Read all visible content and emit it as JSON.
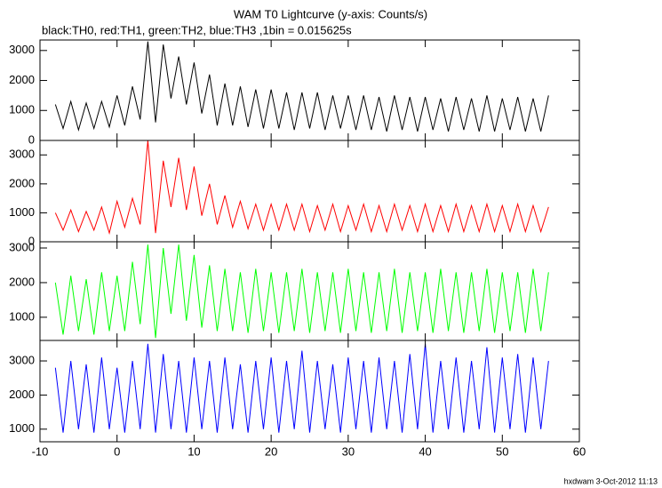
{
  "chart_data": [
    {
      "type": "line",
      "title": "WAM T0 Lightcurve (y-axis: Counts/s)",
      "subtitle": "black:TH0, red:TH1, green:TH2, blue:TH3 ,1bin = 0.015625s",
      "x": [
        -8,
        -7,
        -6,
        -5,
        -4,
        -3,
        -2,
        -1,
        0,
        1,
        2,
        3,
        4,
        5,
        6,
        7,
        8,
        9,
        10,
        11,
        12,
        13,
        14,
        15,
        16,
        17,
        18,
        19,
        20,
        21,
        22,
        23,
        24,
        25,
        26,
        27,
        28,
        29,
        30,
        31,
        32,
        33,
        34,
        35,
        36,
        37,
        38,
        39,
        40,
        41,
        42,
        43,
        44,
        45,
        46,
        47,
        48,
        49,
        50,
        51,
        52,
        53,
        54,
        55,
        56
      ],
      "series": [
        {
          "name": "TH0",
          "color": "#000000",
          "values": [
            1200,
            400,
            1300,
            350,
            1250,
            400,
            1300,
            450,
            1500,
            500,
            1800,
            700,
            3300,
            600,
            3200,
            1400,
            2800,
            1200,
            2600,
            900,
            2200,
            500,
            1900,
            500,
            1800,
            450,
            1700,
            400,
            1700,
            400,
            1600,
            350,
            1600,
            400,
            1600,
            350,
            1500,
            400,
            1500,
            350,
            1500,
            350,
            1450,
            300,
            1500,
            350,
            1450,
            300,
            1450,
            350,
            1400,
            300,
            1450,
            350,
            1400,
            300,
            1500,
            300,
            1400,
            350,
            1450,
            300,
            1400,
            300,
            1500
          ]
        }
      ],
      "xlim": [
        -10,
        60
      ],
      "xticks": [
        -10,
        0,
        10,
        20,
        30,
        40,
        50,
        60
      ],
      "ylim": [
        0,
        3350
      ],
      "yticks": [
        0,
        1000,
        2000,
        3000
      ]
    },
    {
      "type": "line",
      "x": [
        -8,
        -7,
        -6,
        -5,
        -4,
        -3,
        -2,
        -1,
        0,
        1,
        2,
        3,
        4,
        5,
        6,
        7,
        8,
        9,
        10,
        11,
        12,
        13,
        14,
        15,
        16,
        17,
        18,
        19,
        20,
        21,
        22,
        23,
        24,
        25,
        26,
        27,
        28,
        29,
        30,
        31,
        32,
        33,
        34,
        35,
        36,
        37,
        38,
        39,
        40,
        41,
        42,
        43,
        44,
        45,
        46,
        47,
        48,
        49,
        50,
        51,
        52,
        53,
        54,
        55,
        56
      ],
      "series": [
        {
          "name": "TH1",
          "color": "#ff0000",
          "values": [
            1000,
            400,
            1100,
            350,
            1050,
            400,
            1200,
            300,
            1400,
            500,
            1500,
            600,
            3500,
            300,
            2800,
            1200,
            2900,
            1100,
            2600,
            900,
            2000,
            600,
            1600,
            500,
            1400,
            450,
            1300,
            400,
            1300,
            400,
            1300,
            400,
            1300,
            350,
            1250,
            400,
            1300,
            350,
            1250,
            400,
            1300,
            350,
            1250,
            350,
            1300,
            400,
            1250,
            350,
            1300,
            350,
            1250,
            350,
            1300,
            350,
            1250,
            350,
            1300,
            350,
            1250,
            350,
            1300,
            350,
            1250,
            350,
            1200
          ]
        }
      ],
      "xlim": [
        -10,
        60
      ],
      "xticks": [
        -10,
        0,
        10,
        20,
        30,
        40,
        50,
        60
      ],
      "ylim": [
        0,
        3500
      ],
      "yticks": [
        0,
        1000,
        2000,
        3000
      ]
    },
    {
      "type": "line",
      "x": [
        -8,
        -7,
        -6,
        -5,
        -4,
        -3,
        -2,
        -1,
        0,
        1,
        2,
        3,
        4,
        5,
        6,
        7,
        8,
        9,
        10,
        11,
        12,
        13,
        14,
        15,
        16,
        17,
        18,
        19,
        20,
        21,
        22,
        23,
        24,
        25,
        26,
        27,
        28,
        29,
        30,
        31,
        32,
        33,
        34,
        35,
        36,
        37,
        38,
        39,
        40,
        41,
        42,
        43,
        44,
        45,
        46,
        47,
        48,
        49,
        50,
        51,
        52,
        53,
        54,
        55,
        56
      ],
      "series": [
        {
          "name": "TH2",
          "color": "#00ff00",
          "values": [
            2000,
            500,
            2200,
            600,
            2100,
            500,
            2300,
            600,
            2200,
            600,
            2600,
            800,
            3100,
            400,
            3000,
            1100,
            3100,
            900,
            2800,
            700,
            2500,
            600,
            2400,
            600,
            2300,
            550,
            2400,
            600,
            2300,
            550,
            2300,
            600,
            2400,
            550,
            2300,
            600,
            2300,
            550,
            2400,
            600,
            2300,
            550,
            2300,
            600,
            2400,
            550,
            2300,
            600,
            2300,
            550,
            2400,
            600,
            2300,
            550,
            2300,
            600,
            2400,
            550,
            2300,
            600,
            2300,
            550,
            2400,
            600,
            2300
          ]
        }
      ],
      "xlim": [
        -10,
        60
      ],
      "xticks": [
        -10,
        0,
        10,
        20,
        30,
        40,
        50,
        60
      ],
      "ylim": [
        330,
        3180
      ],
      "yticks": [
        1000,
        2000,
        3000
      ]
    },
    {
      "type": "line",
      "annotation": "hxdwam  3-Oct-2012 11:13",
      "x": [
        -8,
        -7,
        -6,
        -5,
        -4,
        -3,
        -2,
        -1,
        0,
        1,
        2,
        3,
        4,
        5,
        6,
        7,
        8,
        9,
        10,
        11,
        12,
        13,
        14,
        15,
        16,
        17,
        18,
        19,
        20,
        21,
        22,
        23,
        24,
        25,
        26,
        27,
        28,
        29,
        30,
        31,
        32,
        33,
        34,
        35,
        36,
        37,
        38,
        39,
        40,
        41,
        42,
        43,
        44,
        45,
        46,
        47,
        48,
        49,
        50,
        51,
        52,
        53,
        54,
        55,
        56
      ],
      "series": [
        {
          "name": "TH3",
          "color": "#0000ff",
          "values": [
            2800,
            900,
            3000,
            1000,
            2900,
            900,
            3100,
            1000,
            2800,
            900,
            3000,
            1000,
            3500,
            900,
            3200,
            1000,
            3000,
            900,
            3100,
            1000,
            3000,
            900,
            3100,
            1000,
            2900,
            900,
            3000,
            1000,
            3100,
            900,
            3000,
            1000,
            3300,
            900,
            3000,
            1000,
            2900,
            900,
            3100,
            1000,
            3000,
            900,
            3100,
            1000,
            3000,
            900,
            3200,
            1000,
            3500,
            900,
            3000,
            1000,
            3100,
            900,
            3000,
            1000,
            3400,
            900,
            3100,
            1000,
            3200,
            900,
            3100,
            1000,
            3000
          ]
        }
      ],
      "xlim": [
        -10,
        60
      ],
      "xticks": [
        -10,
        0,
        10,
        20,
        30,
        40,
        50,
        60
      ],
      "ylim": [
        630,
        3600
      ],
      "yticks": [
        1000,
        2000,
        3000
      ]
    }
  ]
}
